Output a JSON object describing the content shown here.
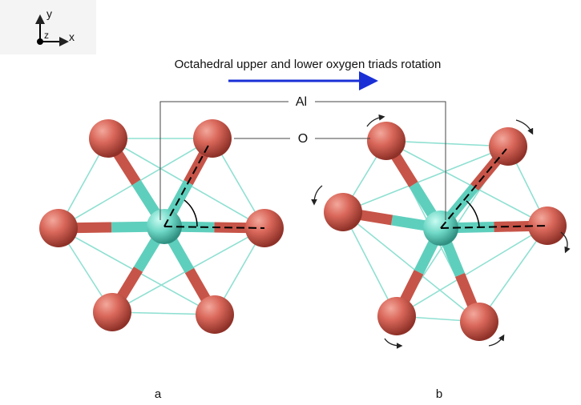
{
  "axes": {
    "y": "y",
    "z": "z",
    "x": "x"
  },
  "caption": "Octahedral upper and lower oxygen triads rotation",
  "labels": {
    "al": "Al",
    "o": "O"
  },
  "panels": [
    "a",
    "b"
  ]
}
